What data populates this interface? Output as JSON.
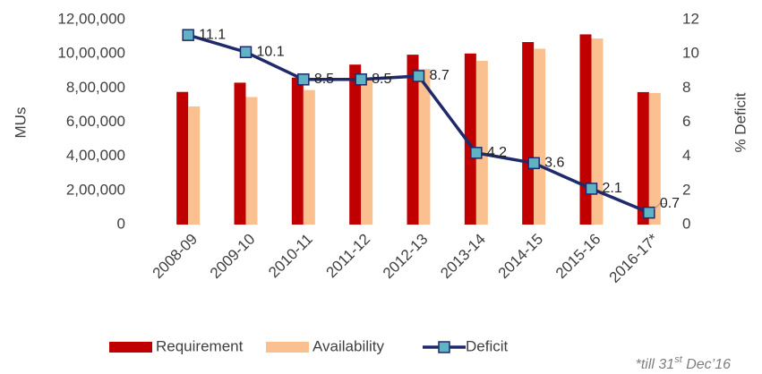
{
  "chart_data": {
    "type": "bar_line",
    "y_label": "MUs",
    "y2_label": "% Deficit",
    "categories": [
      "2008-09",
      "2009-10",
      "2010-11",
      "2011-12",
      "2012-13",
      "2013-14",
      "2014-15",
      "2015-16",
      "2016-17*"
    ],
    "series": [
      {
        "name": "Requirement",
        "color": "#c00000",
        "values": [
          777000,
          831000,
          861000,
          937000,
          995000,
          1002000,
          1069000,
          1114000,
          776000
        ]
      },
      {
        "name": "Availability",
        "color": "#fac090",
        "values": [
          692000,
          747000,
          788000,
          857000,
          911000,
          959000,
          1030000,
          1090000,
          771000
        ]
      },
      {
        "name": "Deficit",
        "color": "#1f2a6b",
        "marker_color": "#5fb3c4",
        "axis": "y2",
        "values": [
          11.1,
          10.1,
          8.5,
          8.5,
          8.7,
          4.2,
          3.6,
          2.1,
          0.7
        ]
      }
    ],
    "ylim": [
      0,
      1200000
    ],
    "yticks": [
      0,
      {
        "value": 200000,
        "label": "2,00,000"
      },
      {
        "value": 400000,
        "label": "4,00,000"
      },
      {
        "value": 600000,
        "label": "6,00,000"
      },
      {
        "value": 800000,
        "label": "8,00,000"
      },
      {
        "value": 1000000,
        "label": "10,00,000"
      },
      {
        "value": 1200000,
        "label": "12,00,000"
      }
    ],
    "y2lim": [
      0,
      12
    ],
    "y2ticks": [
      0,
      2,
      4,
      6,
      8,
      10,
      12
    ],
    "note": {
      "text": "*till 31",
      "sup": "st",
      "rest": " Dec’16"
    }
  }
}
